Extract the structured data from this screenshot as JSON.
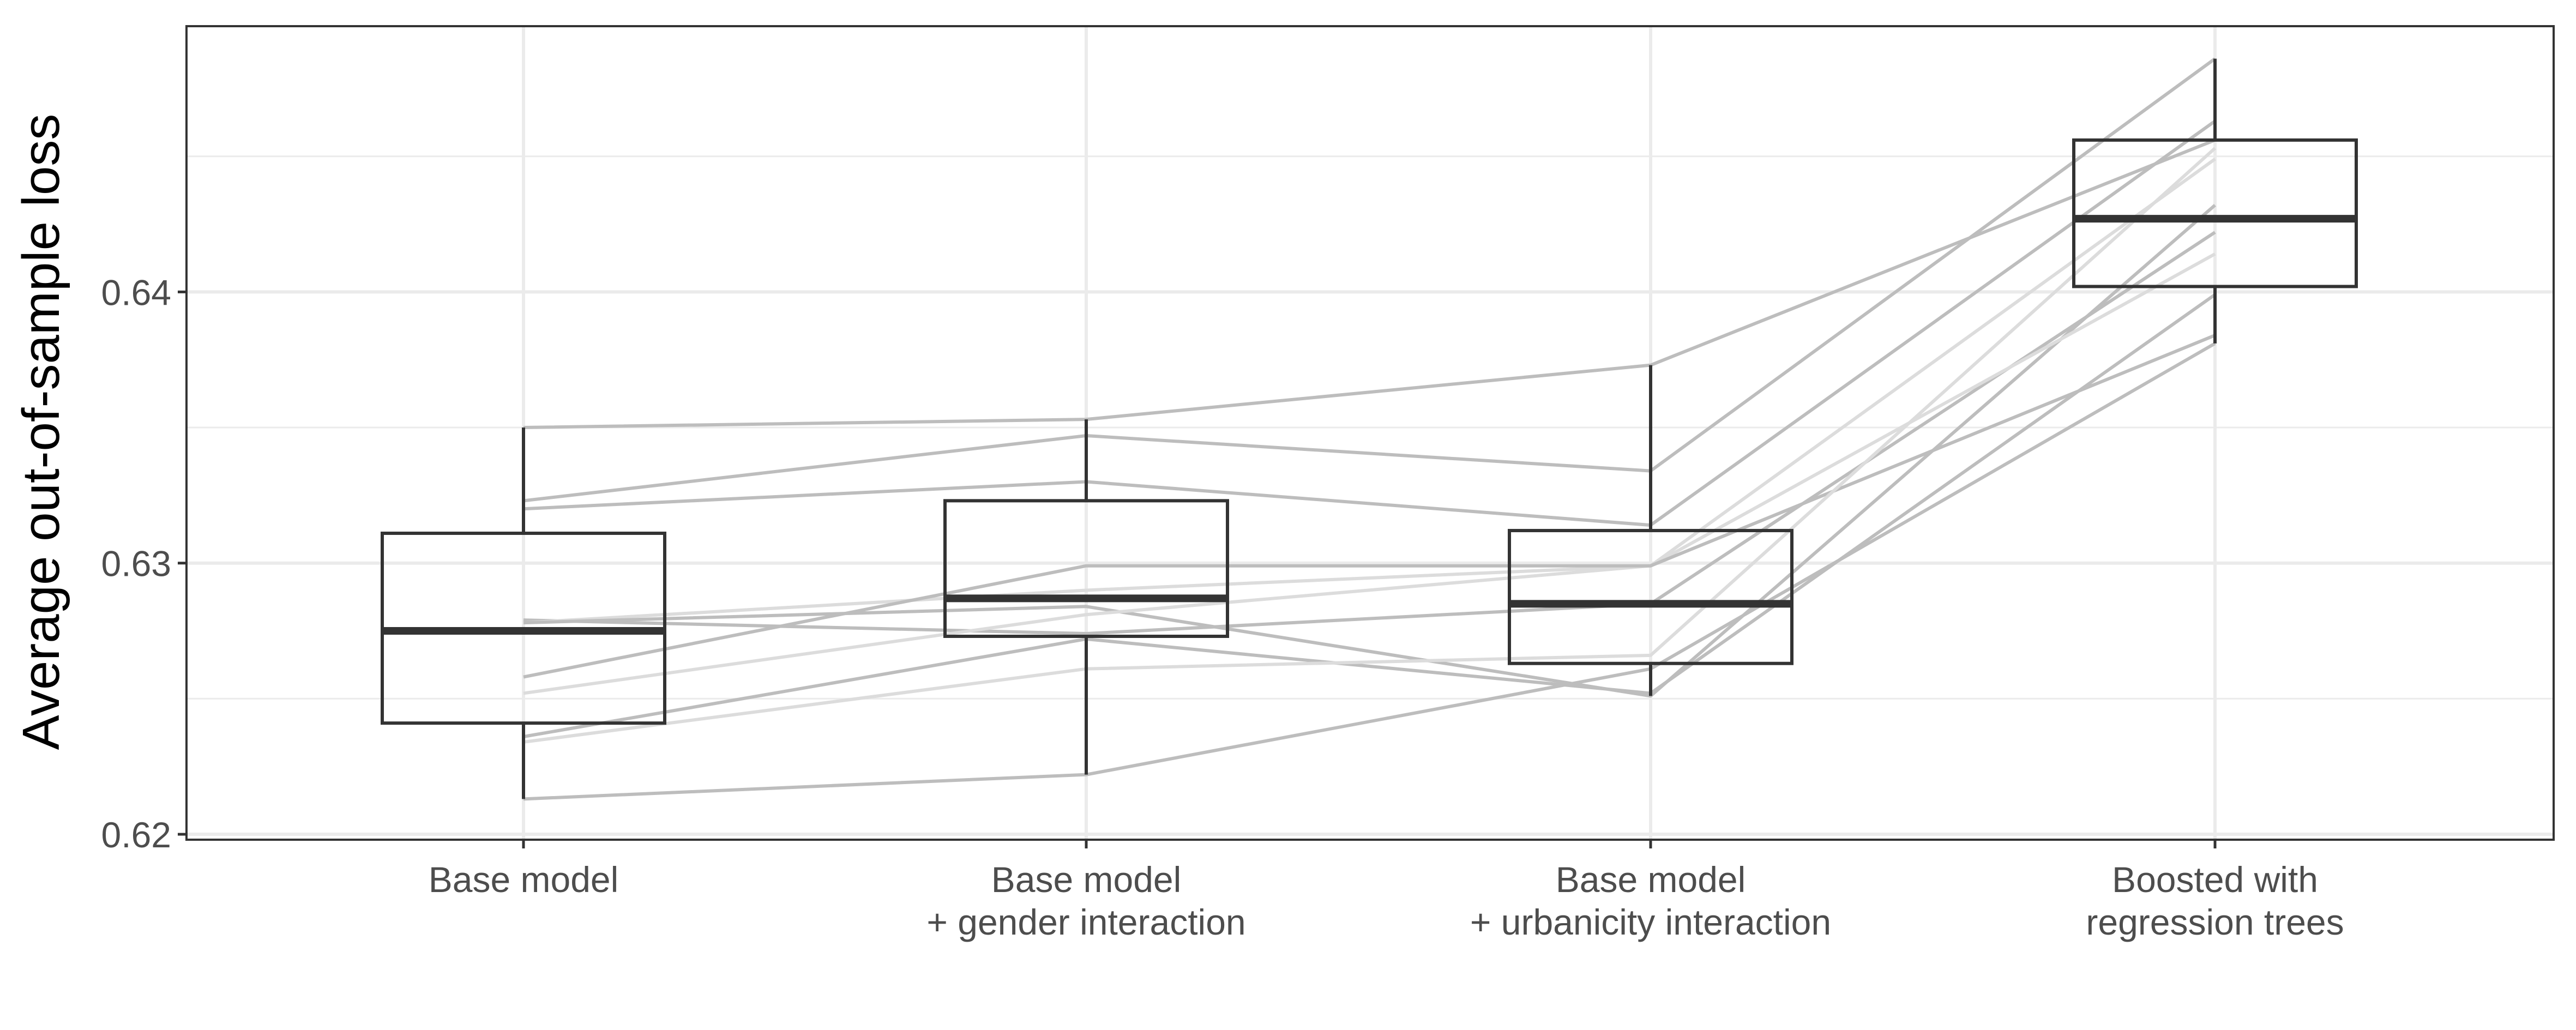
{
  "chart_data": {
    "type": "boxplot",
    "title": "",
    "xlabel": "",
    "ylabel": "Average out-of-sample loss",
    "ylim": [
      0.6198,
      0.6498
    ],
    "y_ticks": [
      "0.62",
      "0.63",
      "0.64"
    ],
    "y_tick_values": [
      0.62,
      0.63,
      0.64
    ],
    "y_minor_values": [
      0.625,
      0.635,
      0.645
    ],
    "grid": true,
    "categories": [
      [
        "Base model"
      ],
      [
        "Base model",
        "+ gender interaction"
      ],
      [
        "Base model",
        "+ urbanicity interaction"
      ],
      [
        "Boosted with",
        "regression trees"
      ]
    ],
    "boxes": [
      {
        "whisker_low": 0.6213,
        "q1": 0.6241,
        "median": 0.6275,
        "q3": 0.6311,
        "whisker_high": 0.635
      },
      {
        "whisker_low": 0.6222,
        "q1": 0.6273,
        "median": 0.6287,
        "q3": 0.6323,
        "whisker_high": 0.6353
      },
      {
        "whisker_low": 0.6251,
        "q1": 0.6263,
        "median": 0.6285,
        "q3": 0.6312,
        "whisker_high": 0.6373
      },
      {
        "whisker_low": 0.6381,
        "q1": 0.6402,
        "median": 0.6427,
        "q3": 0.6456,
        "whisker_high": 0.6486
      }
    ],
    "series": [
      {
        "values": [
          0.635,
          0.6353,
          0.6373,
          0.6456
        ],
        "shade": "dark"
      },
      {
        "values": [
          0.6323,
          0.6347,
          0.6334,
          0.6486
        ],
        "shade": "dark"
      },
      {
        "values": [
          0.632,
          0.633,
          0.6314,
          0.6463
        ],
        "shade": "dark"
      },
      {
        "values": [
          0.6279,
          0.6274,
          0.6285,
          0.6422
        ],
        "shade": "dark"
      },
      {
        "values": [
          0.6278,
          0.629,
          0.6299,
          0.6449
        ],
        "shade": "light"
      },
      {
        "values": [
          0.6278,
          0.6284,
          0.6251,
          0.6432
        ],
        "shade": "dark"
      },
      {
        "values": [
          0.6252,
          0.6281,
          0.6299,
          0.6414
        ],
        "shade": "light"
      },
      {
        "values": [
          0.6258,
          0.6299,
          0.6299,
          0.6384
        ],
        "shade": "dark"
      },
      {
        "values": [
          0.6236,
          0.6272,
          0.6252,
          0.6399
        ],
        "shade": "dark"
      },
      {
        "values": [
          0.6234,
          0.6261,
          0.6266,
          0.6453
        ],
        "shade": "light"
      },
      {
        "values": [
          0.6213,
          0.6222,
          0.6261,
          0.6381
        ],
        "shade": "dark"
      }
    ],
    "colors": {
      "line_dark": "#bdbdbd",
      "line_light": "#dcdcdc",
      "box_stroke": "#333333",
      "grid": "#ebebeb",
      "panel_border": "#333333",
      "tick_text": "#4d4d4d",
      "axis_title": "#000000"
    }
  }
}
